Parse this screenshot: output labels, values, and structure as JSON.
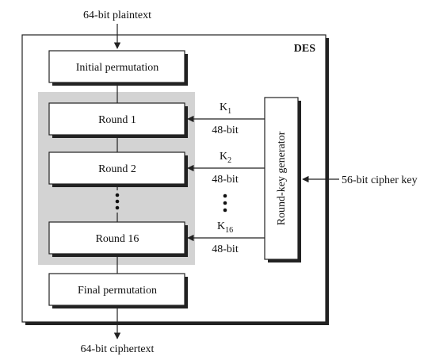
{
  "diagram": {
    "title": "DES",
    "input": "64-bit plaintext",
    "output": "64-bit ciphertext",
    "cipher_key": "56-bit cipher key",
    "blocks": {
      "initial": "Initial permutation",
      "final": "Final permutation",
      "generator": "Round-key generator"
    },
    "rounds": [
      {
        "label": "Round 1",
        "key": "K",
        "key_sub": "1",
        "bits": "48-bit"
      },
      {
        "label": "Round 2",
        "key": "K",
        "key_sub": "2",
        "bits": "48-bit"
      },
      {
        "label": "Round 16",
        "key": "K",
        "key_sub": "16",
        "bits": "48-bit"
      }
    ]
  },
  "colors": {
    "round_group_bg": "#d3d3d3",
    "line": "#222222",
    "shadow": "#222222"
  }
}
